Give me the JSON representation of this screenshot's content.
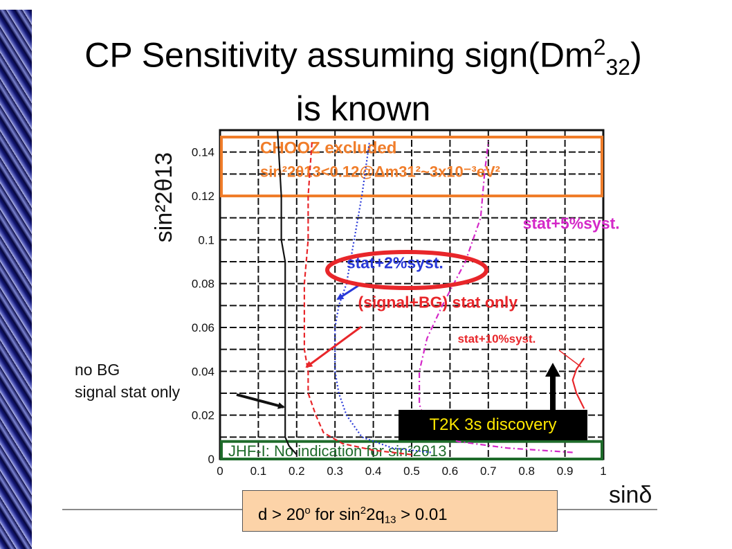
{
  "slide": {
    "title_line1_pre": "CP Sensitivity assuming sign(Dm",
    "title_sup": "2",
    "title_sub": "32",
    "title_close": ")",
    "title_line2": "is known"
  },
  "annotations": {
    "t2k_box": "T2K 3s discovery",
    "nobg_line1": "no BG",
    "nobg_line2": "signal stat only",
    "bottom_pre": "d > 20",
    "bottom_deg": "o",
    "bottom_mid": " for sin",
    "bottom_sup": "2",
    "bottom_mid2": "2q",
    "bottom_sub": "13",
    "bottom_post": " > 0.01"
  },
  "colors": {
    "orange": "#f07d2a",
    "green": "#1e6b2a",
    "red": "#e8262a",
    "blue": "#2838d8",
    "magenta": "#d428c8",
    "black": "#111111",
    "t2k_text": "#ffe800",
    "bottom_box_bg": "#fcd3a8"
  },
  "chart_data": {
    "type": "line",
    "xlabel": "sinδ",
    "ylabel": "sin²2θ13",
    "xlim": [
      0,
      1
    ],
    "ylim": [
      0,
      0.15
    ],
    "xticks": [
      "0",
      "0.1",
      "0.2",
      "0.3",
      "0.4",
      "0.5",
      "0.6",
      "0.7",
      "0.8",
      "0.9",
      "1"
    ],
    "yticks": [
      "0",
      "0.02",
      "0.04",
      "0.06",
      "0.08",
      "0.1",
      "0.12",
      "0.14"
    ],
    "grid": true,
    "series": [
      {
        "name": "no BG signal stat only",
        "color": "black",
        "style": "solid",
        "x": [
          0.2,
          0.18,
          0.17,
          0.17,
          0.17,
          0.17,
          0.17,
          0.17,
          0.17,
          0.17,
          0.17,
          0.16,
          0.16,
          0.15
        ],
        "y": [
          0.002,
          0.006,
          0.01,
          0.02,
          0.03,
          0.04,
          0.05,
          0.06,
          0.07,
          0.08,
          0.09,
          0.1,
          0.12,
          0.15
        ]
      },
      {
        "name": "(signal+BG) stat only",
        "color": "red",
        "style": "dashed",
        "x": [
          0.5,
          0.4,
          0.32,
          0.27,
          0.25,
          0.23,
          0.23,
          0.22,
          0.22,
          0.22,
          0.23,
          0.23,
          0.24
        ],
        "y": [
          0.002,
          0.004,
          0.007,
          0.012,
          0.02,
          0.03,
          0.04,
          0.05,
          0.06,
          0.08,
          0.1,
          0.12,
          0.145
        ]
      },
      {
        "name": "stat+2%syst.",
        "color": "blue",
        "style": "dotted",
        "x": [
          0.55,
          0.45,
          0.37,
          0.33,
          0.31,
          0.3,
          0.3,
          0.3,
          0.31,
          0.33,
          0.35,
          0.37,
          0.39
        ],
        "y": [
          0.003,
          0.005,
          0.01,
          0.02,
          0.03,
          0.04,
          0.05,
          0.06,
          0.07,
          0.08,
          0.1,
          0.12,
          0.145
        ]
      },
      {
        "name": "stat+5%syst.",
        "color": "magenta",
        "style": "dashdot",
        "x": [
          0.92,
          0.75,
          0.62,
          0.54,
          0.52,
          0.52,
          0.54,
          0.58,
          0.61,
          0.64,
          0.66,
          0.68,
          0.69,
          0.7
        ],
        "y": [
          0.003,
          0.005,
          0.008,
          0.015,
          0.025,
          0.04,
          0.055,
          0.07,
          0.08,
          0.09,
          0.1,
          0.11,
          0.13,
          0.145
        ]
      },
      {
        "name": "stat+10%syst.",
        "color": "red",
        "style": "solid",
        "x": [
          0.95,
          0.93,
          0.92,
          0.93,
          0.95
        ],
        "y": [
          0.023,
          0.03,
          0.036,
          0.041,
          0.046
        ]
      }
    ],
    "regions": [
      {
        "label_line1": "CHOOZ excluded",
        "label_line2": "sin²2θ13<0.12@Δm31²~3x10⁻³eV²",
        "color": "orange",
        "y_from": 0.12,
        "y_to": 0.15
      },
      {
        "label": "JHF-I: No indication for sin²2θ13",
        "color": "green",
        "y_from": 0,
        "y_to": 0.008
      }
    ],
    "curve_labels": [
      {
        "text": "stat+5%syst.",
        "color": "magenta",
        "x": 0.79,
        "y": 0.105
      },
      {
        "text": "stat+2%syst.",
        "color": "blue",
        "x": 0.33,
        "y": 0.087
      },
      {
        "text": "(signal+BG) stat only",
        "color": "red",
        "x": 0.36,
        "y": 0.069
      },
      {
        "text": "stat+10%syst.",
        "color": "red",
        "x": 0.62,
        "y": 0.053
      }
    ]
  }
}
